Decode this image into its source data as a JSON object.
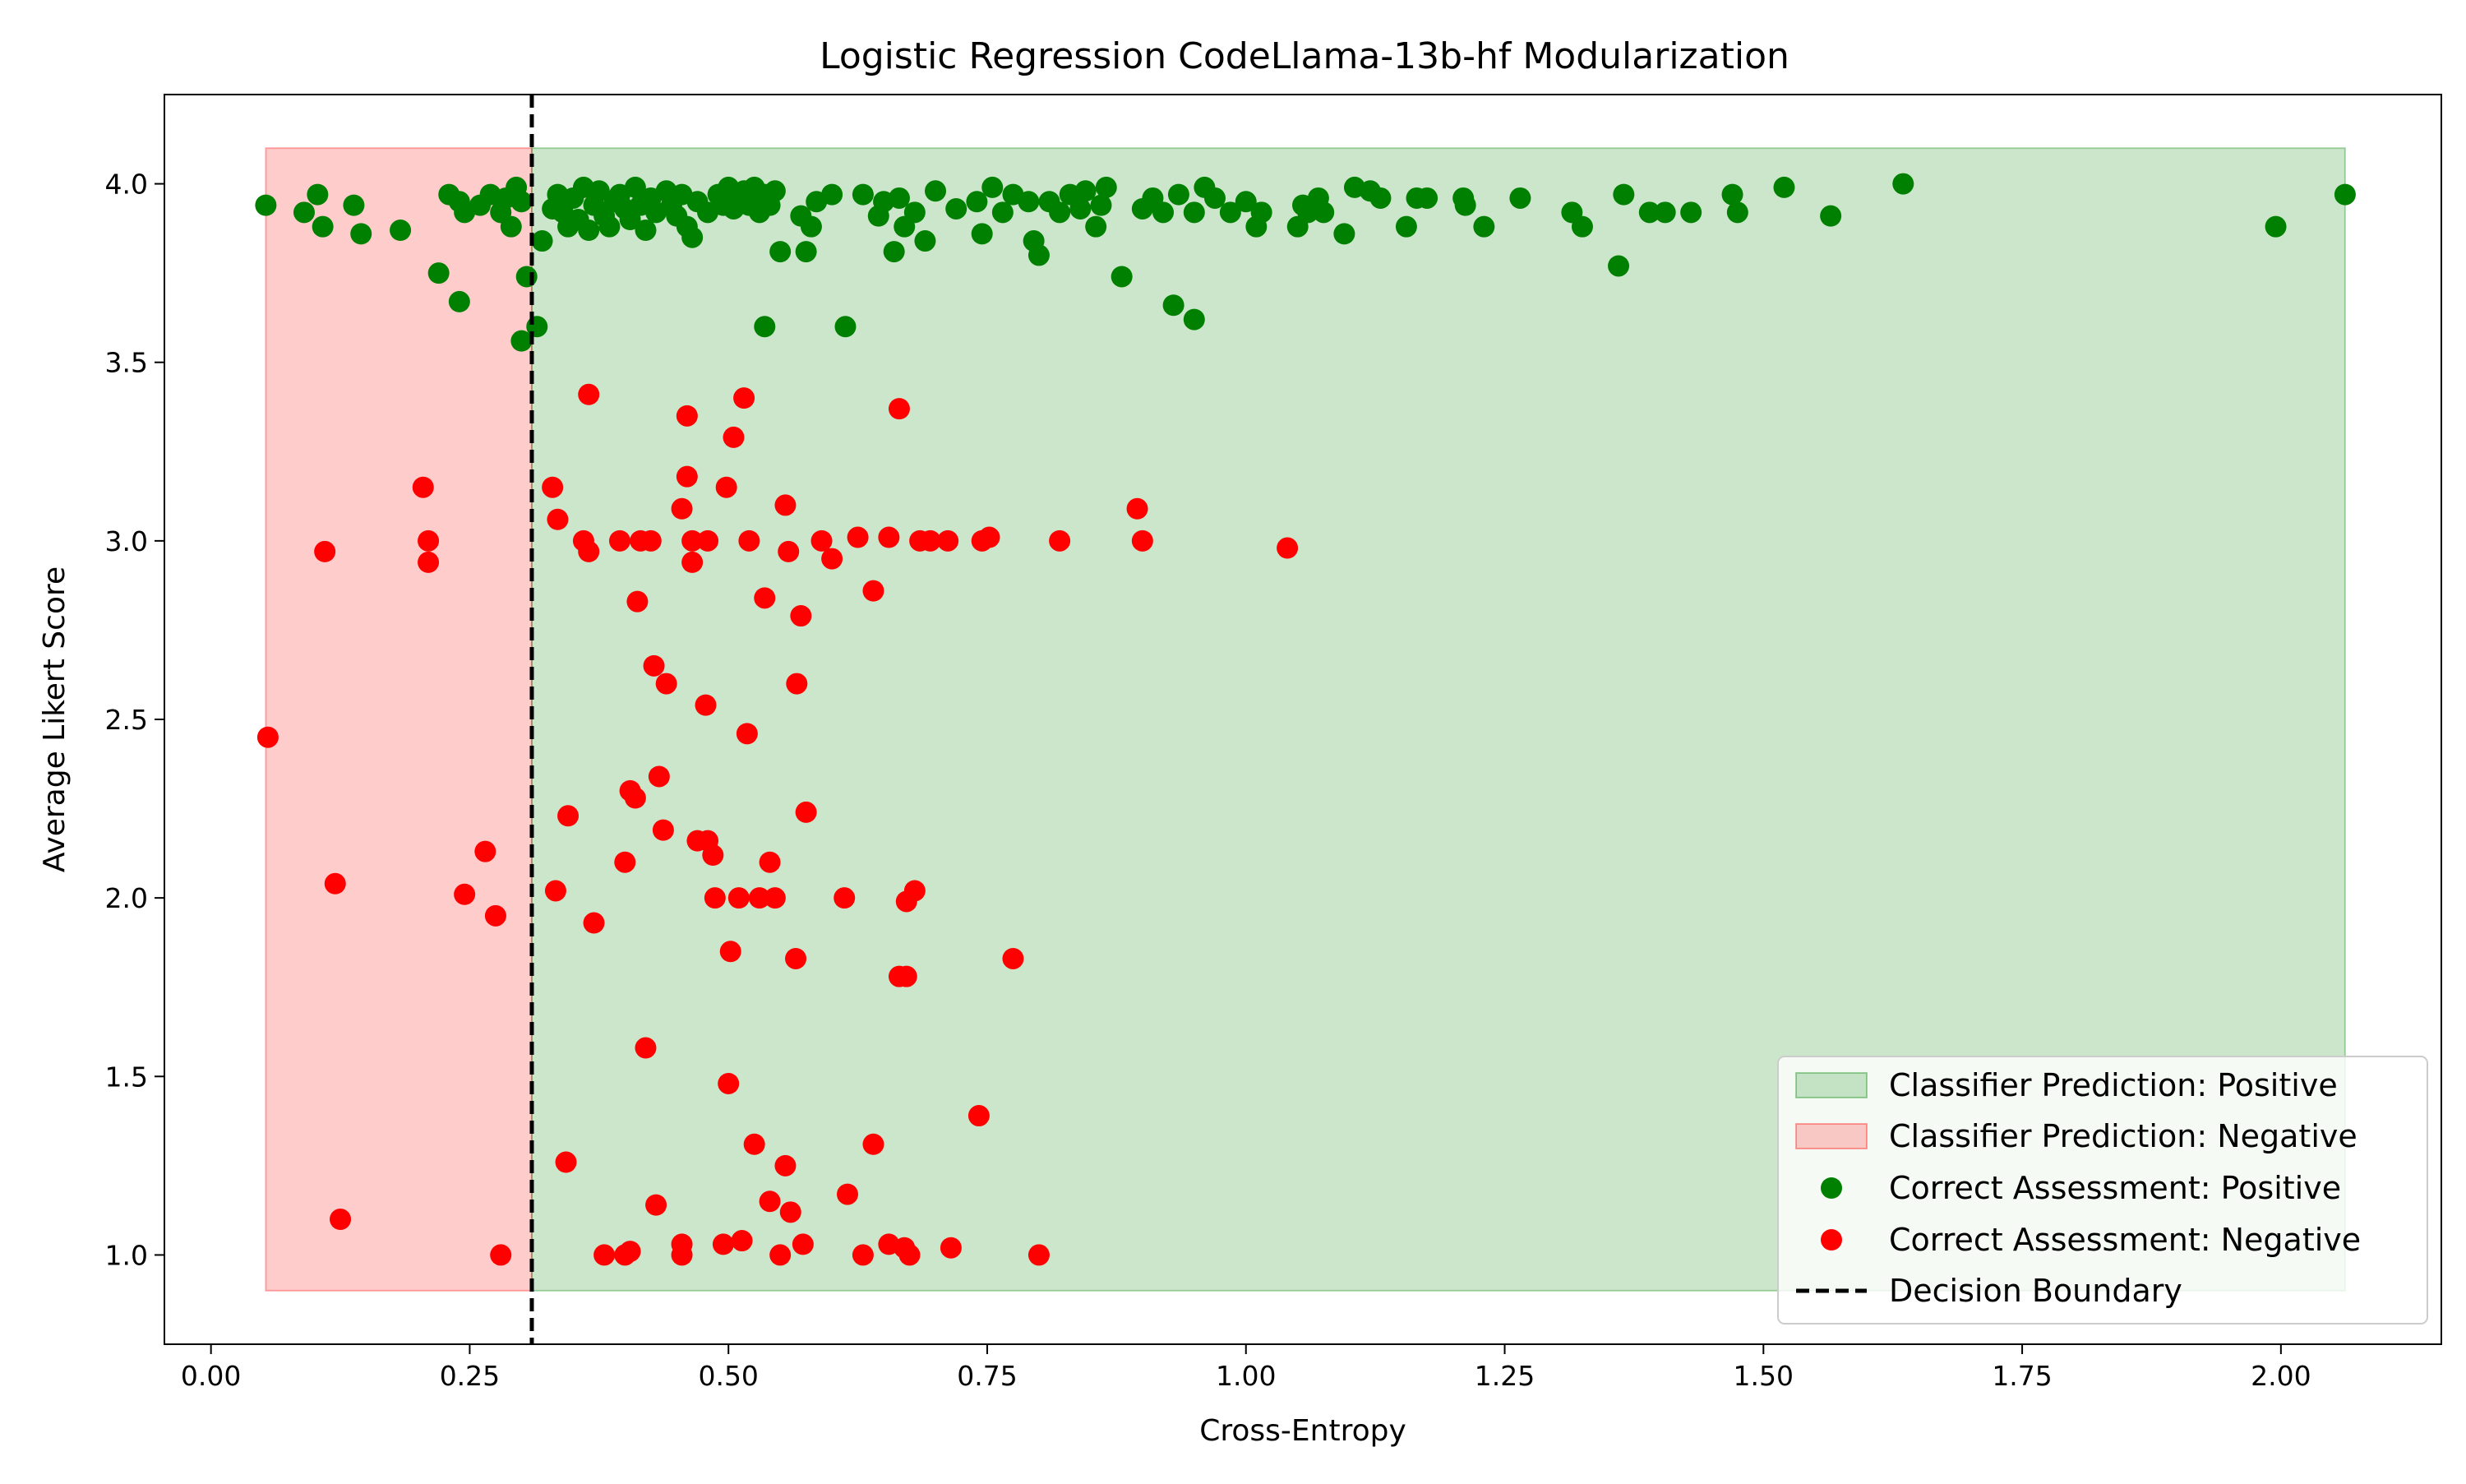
{
  "chart_data": {
    "type": "scatter",
    "title": "Logistic Regression CodeLlama-13b-hf Modularization",
    "xlabel": "Cross-Entropy",
    "ylabel": "Average Likert Score",
    "xlim": [
      -0.045,
      2.155
    ],
    "ylim": [
      0.75,
      4.25
    ],
    "xticks": [
      "0.00",
      "0.25",
      "0.50",
      "0.75",
      "1.00",
      "1.25",
      "1.50",
      "1.75",
      "2.00"
    ],
    "yticks": [
      "1.0",
      "1.5",
      "2.0",
      "2.5",
      "3.0",
      "3.5",
      "4.0"
    ],
    "grid": false,
    "legend_position": "lower-right",
    "decision_boundary": 0.31,
    "regions": [
      {
        "name": "Classifier Prediction: Negative",
        "x": [
          0.053,
          0.31
        ],
        "y": [
          0.9,
          4.1
        ],
        "color": "#ff0000",
        "opacity": 0.2
      },
      {
        "name": "Classifier Prediction: Positive",
        "x": [
          0.31,
          2.062
        ],
        "y": [
          0.9,
          4.1
        ],
        "color": "#008000",
        "opacity": 0.2
      }
    ],
    "series": [
      {
        "name": "Correct Assessment: Positive",
        "color": "#008000",
        "points": [
          [
            0.053,
            3.94
          ],
          [
            0.09,
            3.92
          ],
          [
            0.103,
            3.97
          ],
          [
            0.108,
            3.88
          ],
          [
            0.138,
            3.94
          ],
          [
            0.145,
            3.86
          ],
          [
            0.183,
            3.87
          ],
          [
            0.22,
            3.75
          ],
          [
            0.24,
            3.67
          ],
          [
            0.23,
            3.97
          ],
          [
            0.24,
            3.95
          ],
          [
            0.245,
            3.92
          ],
          [
            0.26,
            3.94
          ],
          [
            0.27,
            3.97
          ],
          [
            0.28,
            3.92
          ],
          [
            0.285,
            3.96
          ],
          [
            0.29,
            3.88
          ],
          [
            0.295,
            3.99
          ],
          [
            0.3,
            3.95
          ],
          [
            0.305,
            3.74
          ],
          [
            0.3,
            3.56
          ],
          [
            0.315,
            3.6
          ],
          [
            0.32,
            3.84
          ],
          [
            0.33,
            3.93
          ],
          [
            0.335,
            3.97
          ],
          [
            0.34,
            3.92
          ],
          [
            0.345,
            3.88
          ],
          [
            0.35,
            3.96
          ],
          [
            0.355,
            3.9
          ],
          [
            0.36,
            3.99
          ],
          [
            0.365,
            3.87
          ],
          [
            0.37,
            3.94
          ],
          [
            0.375,
            3.98
          ],
          [
            0.38,
            3.91
          ],
          [
            0.385,
            3.88
          ],
          [
            0.39,
            3.95
          ],
          [
            0.395,
            3.97
          ],
          [
            0.4,
            3.93
          ],
          [
            0.405,
            3.9
          ],
          [
            0.41,
            3.99
          ],
          [
            0.415,
            3.94
          ],
          [
            0.42,
            3.87
          ],
          [
            0.425,
            3.96
          ],
          [
            0.43,
            3.92
          ],
          [
            0.44,
            3.98
          ],
          [
            0.445,
            3.94
          ],
          [
            0.45,
            3.91
          ],
          [
            0.455,
            3.97
          ],
          [
            0.46,
            3.88
          ],
          [
            0.465,
            3.85
          ],
          [
            0.47,
            3.95
          ],
          [
            0.48,
            3.92
          ],
          [
            0.49,
            3.97
          ],
          [
            0.495,
            3.94
          ],
          [
            0.5,
            3.99
          ],
          [
            0.505,
            3.93
          ],
          [
            0.51,
            3.96
          ],
          [
            0.515,
            3.98
          ],
          [
            0.52,
            3.94
          ],
          [
            0.525,
            3.99
          ],
          [
            0.53,
            3.92
          ],
          [
            0.535,
            3.97
          ],
          [
            0.54,
            3.94
          ],
          [
            0.535,
            3.6
          ],
          [
            0.545,
            3.98
          ],
          [
            0.55,
            3.81
          ],
          [
            0.57,
            3.91
          ],
          [
            0.575,
            3.81
          ],
          [
            0.58,
            3.88
          ],
          [
            0.585,
            3.95
          ],
          [
            0.6,
            3.97
          ],
          [
            0.613,
            3.6
          ],
          [
            0.63,
            3.97
          ],
          [
            0.645,
            3.91
          ],
          [
            0.65,
            3.95
          ],
          [
            0.66,
            3.81
          ],
          [
            0.665,
            3.96
          ],
          [
            0.67,
            3.88
          ],
          [
            0.68,
            3.92
          ],
          [
            0.69,
            3.84
          ],
          [
            0.7,
            3.98
          ],
          [
            0.72,
            3.93
          ],
          [
            0.74,
            3.95
          ],
          [
            0.745,
            3.86
          ],
          [
            0.755,
            3.99
          ],
          [
            0.765,
            3.92
          ],
          [
            0.775,
            3.97
          ],
          [
            0.79,
            3.95
          ],
          [
            0.8,
            3.8
          ],
          [
            0.795,
            3.84
          ],
          [
            0.81,
            3.95
          ],
          [
            0.82,
            3.92
          ],
          [
            0.83,
            3.97
          ],
          [
            0.84,
            3.93
          ],
          [
            0.845,
            3.98
          ],
          [
            0.855,
            3.88
          ],
          [
            0.86,
            3.94
          ],
          [
            0.865,
            3.99
          ],
          [
            0.88,
            3.74
          ],
          [
            0.9,
            3.93
          ],
          [
            0.91,
            3.96
          ],
          [
            0.92,
            3.92
          ],
          [
            0.93,
            3.66
          ],
          [
            0.935,
            3.97
          ],
          [
            0.95,
            3.92
          ],
          [
            0.95,
            3.62
          ],
          [
            0.96,
            3.99
          ],
          [
            0.97,
            3.96
          ],
          [
            0.985,
            3.92
          ],
          [
            1.0,
            3.95
          ],
          [
            1.01,
            3.88
          ],
          [
            1.015,
            3.92
          ],
          [
            1.05,
            3.88
          ],
          [
            1.055,
            3.94
          ],
          [
            1.06,
            3.92
          ],
          [
            1.07,
            3.96
          ],
          [
            1.075,
            3.92
          ],
          [
            1.095,
            3.86
          ],
          [
            1.105,
            3.99
          ],
          [
            1.12,
            3.98
          ],
          [
            1.13,
            3.96
          ],
          [
            1.155,
            3.88
          ],
          [
            1.165,
            3.96
          ],
          [
            1.175,
            3.96
          ],
          [
            1.21,
            3.96
          ],
          [
            1.212,
            3.94
          ],
          [
            1.23,
            3.88
          ],
          [
            1.265,
            3.96
          ],
          [
            1.315,
            3.92
          ],
          [
            1.325,
            3.88
          ],
          [
            1.36,
            3.77
          ],
          [
            1.365,
            3.97
          ],
          [
            1.39,
            3.92
          ],
          [
            1.405,
            3.92
          ],
          [
            1.43,
            3.92
          ],
          [
            1.47,
            3.97
          ],
          [
            1.475,
            3.92
          ],
          [
            1.52,
            3.99
          ],
          [
            1.565,
            3.91
          ],
          [
            1.635,
            4.0
          ],
          [
            1.995,
            3.88
          ],
          [
            2.062,
            3.97
          ]
        ]
      },
      {
        "name": "Correct Assessment: Negative",
        "color": "#ff0000",
        "points": [
          [
            0.055,
            2.45
          ],
          [
            0.11,
            2.97
          ],
          [
            0.12,
            2.04
          ],
          [
            0.125,
            1.1
          ],
          [
            0.205,
            3.15
          ],
          [
            0.21,
            3.0
          ],
          [
            0.21,
            2.94
          ],
          [
            0.245,
            2.01
          ],
          [
            0.265,
            2.13
          ],
          [
            0.275,
            1.95
          ],
          [
            0.28,
            1.0
          ],
          [
            0.33,
            3.15
          ],
          [
            0.335,
            3.06
          ],
          [
            0.333,
            2.02
          ],
          [
            0.345,
            2.23
          ],
          [
            0.343,
            1.26
          ],
          [
            0.36,
            3.0
          ],
          [
            0.365,
            2.97
          ],
          [
            0.365,
            3.41
          ],
          [
            0.37,
            1.93
          ],
          [
            0.38,
            1.0
          ],
          [
            0.395,
            3.0
          ],
          [
            0.4,
            2.1
          ],
          [
            0.4,
            1.0
          ],
          [
            0.405,
            2.3
          ],
          [
            0.41,
            2.28
          ],
          [
            0.405,
            1.01
          ],
          [
            0.412,
            2.83
          ],
          [
            0.415,
            3.0
          ],
          [
            0.42,
            1.58
          ],
          [
            0.425,
            3.0
          ],
          [
            0.428,
            2.65
          ],
          [
            0.43,
            1.14
          ],
          [
            0.433,
            2.34
          ],
          [
            0.437,
            2.19
          ],
          [
            0.44,
            2.6
          ],
          [
            0.455,
            3.09
          ],
          [
            0.455,
            1.03
          ],
          [
            0.455,
            1.0
          ],
          [
            0.46,
            3.18
          ],
          [
            0.46,
            3.35
          ],
          [
            0.465,
            3.0
          ],
          [
            0.465,
            2.94
          ],
          [
            0.47,
            2.16
          ],
          [
            0.48,
            2.16
          ],
          [
            0.478,
            2.54
          ],
          [
            0.48,
            3.0
          ],
          [
            0.485,
            2.12
          ],
          [
            0.487,
            2.0
          ],
          [
            0.495,
            1.03
          ],
          [
            0.498,
            3.15
          ],
          [
            0.5,
            1.48
          ],
          [
            0.502,
            1.85
          ],
          [
            0.505,
            3.29
          ],
          [
            0.51,
            2.0
          ],
          [
            0.513,
            1.04
          ],
          [
            0.515,
            3.4
          ],
          [
            0.518,
            2.46
          ],
          [
            0.52,
            3.0
          ],
          [
            0.525,
            1.31
          ],
          [
            0.53,
            2.0
          ],
          [
            0.535,
            2.84
          ],
          [
            0.54,
            2.1
          ],
          [
            0.54,
            1.15
          ],
          [
            0.545,
            2.0
          ],
          [
            0.55,
            1.0
          ],
          [
            0.555,
            3.1
          ],
          [
            0.555,
            1.25
          ],
          [
            0.558,
            2.97
          ],
          [
            0.56,
            1.12
          ],
          [
            0.565,
            1.83
          ],
          [
            0.566,
            2.6
          ],
          [
            0.57,
            2.79
          ],
          [
            0.572,
            1.03
          ],
          [
            0.575,
            2.24
          ],
          [
            0.59,
            3.0
          ],
          [
            0.6,
            2.95
          ],
          [
            0.612,
            2.0
          ],
          [
            0.615,
            1.17
          ],
          [
            0.625,
            3.01
          ],
          [
            0.63,
            1.0
          ],
          [
            0.64,
            2.86
          ],
          [
            0.64,
            1.31
          ],
          [
            0.655,
            3.01
          ],
          [
            0.655,
            1.03
          ],
          [
            0.665,
            3.37
          ],
          [
            0.665,
            1.78
          ],
          [
            0.67,
            1.02
          ],
          [
            0.672,
            1.78
          ],
          [
            0.672,
            1.99
          ],
          [
            0.675,
            1.0
          ],
          [
            0.68,
            2.02
          ],
          [
            0.685,
            3.0
          ],
          [
            0.695,
            3.0
          ],
          [
            0.712,
            3.0
          ],
          [
            0.715,
            1.02
          ],
          [
            0.742,
            1.39
          ],
          [
            0.745,
            3.0
          ],
          [
            0.752,
            3.01
          ],
          [
            0.775,
            1.83
          ],
          [
            0.8,
            1.0
          ],
          [
            0.82,
            3.0
          ],
          [
            0.895,
            3.09
          ],
          [
            0.9,
            3.0
          ],
          [
            1.04,
            2.98
          ]
        ]
      }
    ]
  },
  "legend": [
    "Classifier Prediction: Positive",
    "Classifier Prediction: Negative",
    "Correct Assessment: Positive",
    "Correct Assessment: Negative",
    "Decision Boundary"
  ]
}
